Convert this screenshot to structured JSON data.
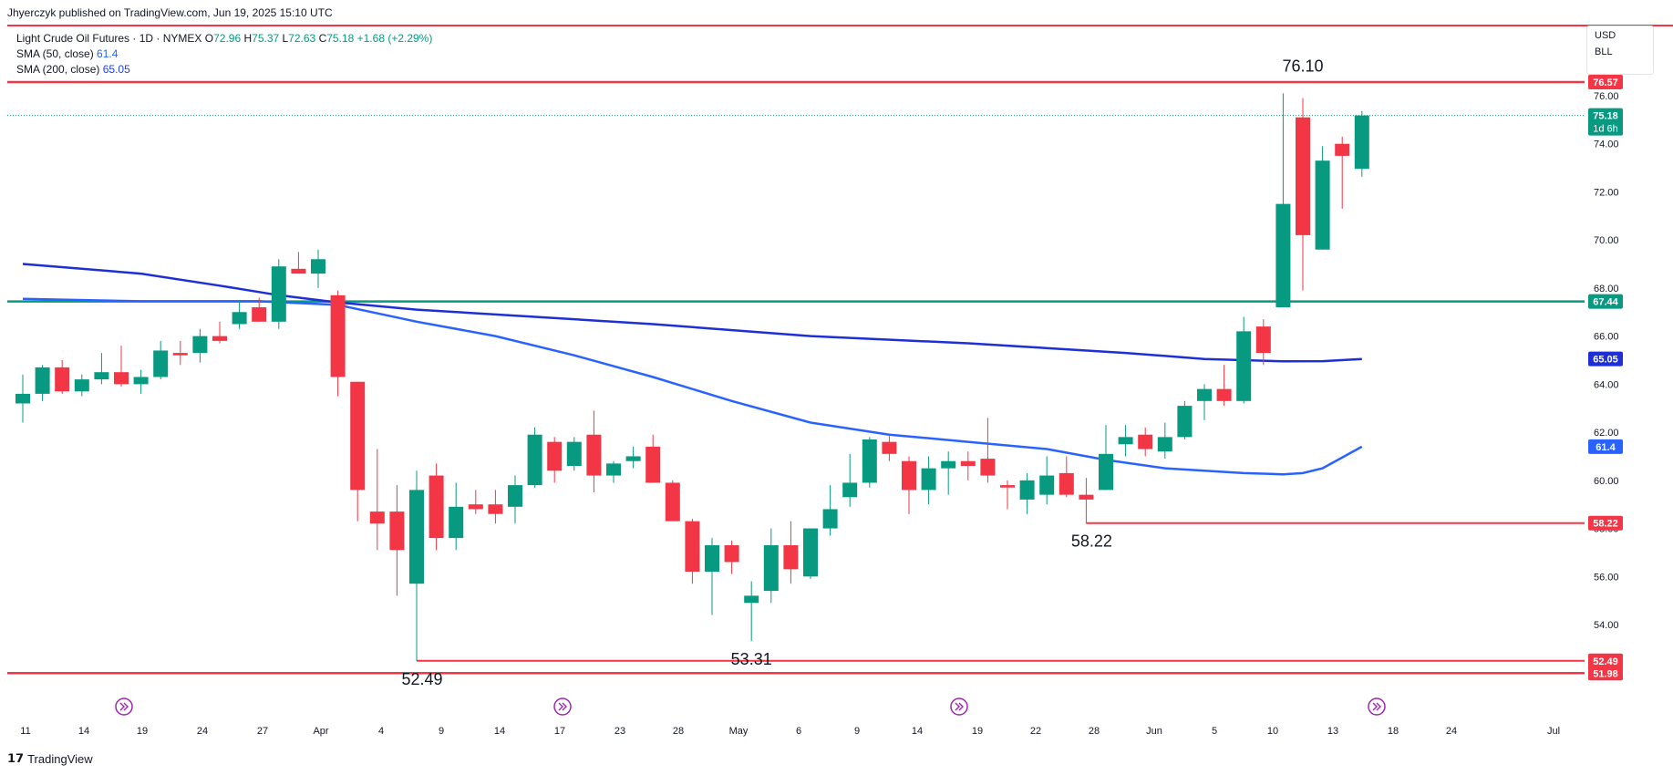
{
  "header": {
    "published_by": "Jhyerczyk published on TradingView.com, Jun 19, 2025 15:10 UTC"
  },
  "legend": {
    "symbol": "Light Crude Oil Futures · 1D · NYMEX",
    "o_label": "O",
    "o_value": "72.96",
    "h_label": "H",
    "h_value": "75.37",
    "l_label": "L",
    "l_value": "72.63",
    "c_label": "C",
    "c_value": "75.18",
    "change": "+1.68 (+2.29%)",
    "sma50_label": "SMA (50, close)",
    "sma50_value": "61.4",
    "sma200_label": "SMA (200, close)",
    "sma200_value": "65.05"
  },
  "currency": {
    "currency": "USD",
    "unit": "BLL"
  },
  "footer": {
    "brand": "TradingView"
  },
  "colors": {
    "up": "#089981",
    "down": "#f23645",
    "sma50": "#2962ff",
    "sma200": "#1e2fd6",
    "level_red": "#f23645",
    "level_green": "#089981"
  },
  "chart_data": {
    "type": "candlestick",
    "ylim": [
      51.2,
      77.6
    ],
    "y_ticks": [
      "54.00",
      "56.00",
      "58.00",
      "60.00",
      "62.00",
      "64.00",
      "66.00",
      "68.00",
      "70.00",
      "72.00",
      "74.00",
      "76.00"
    ],
    "x_tick_labels": [
      "11",
      "14",
      "19",
      "24",
      "27",
      "Apr",
      "4",
      "9",
      "14",
      "17",
      "23",
      "28",
      "May",
      "6",
      "9",
      "14",
      "19",
      "22",
      "28",
      "Jun",
      "5",
      "10",
      "13",
      "18",
      "24",
      "Jul"
    ],
    "candles": [
      {
        "o": 63.2,
        "h": 64.4,
        "l": 62.4,
        "c": 63.6
      },
      {
        "o": 63.6,
        "h": 64.8,
        "l": 63.3,
        "c": 64.7
      },
      {
        "o": 64.7,
        "h": 65.0,
        "l": 63.6,
        "c": 63.7
      },
      {
        "o": 63.7,
        "h": 64.4,
        "l": 63.5,
        "c": 64.2
      },
      {
        "o": 64.2,
        "h": 65.3,
        "l": 64.0,
        "c": 64.5
      },
      {
        "o": 64.5,
        "h": 65.6,
        "l": 63.9,
        "c": 64.0
      },
      {
        "o": 64.0,
        "h": 64.6,
        "l": 63.6,
        "c": 64.3
      },
      {
        "o": 64.3,
        "h": 65.8,
        "l": 64.2,
        "c": 65.4
      },
      {
        "o": 65.3,
        "h": 65.8,
        "l": 64.8,
        "c": 65.2
      },
      {
        "o": 65.3,
        "h": 66.3,
        "l": 64.9,
        "c": 66.0
      },
      {
        "o": 66.0,
        "h": 66.6,
        "l": 65.7,
        "c": 65.8
      },
      {
        "o": 66.5,
        "h": 67.5,
        "l": 66.3,
        "c": 67.0
      },
      {
        "o": 67.2,
        "h": 67.6,
        "l": 66.6,
        "c": 66.6
      },
      {
        "o": 66.6,
        "h": 69.2,
        "l": 66.3,
        "c": 68.9
      },
      {
        "o": 68.8,
        "h": 69.5,
        "l": 68.6,
        "c": 68.6
      },
      {
        "o": 68.6,
        "h": 69.6,
        "l": 68.0,
        "c": 69.2
      },
      {
        "o": 67.7,
        "h": 67.9,
        "l": 63.5,
        "c": 64.3
      },
      {
        "o": 64.1,
        "h": 64.1,
        "l": 58.3,
        "c": 59.6
      },
      {
        "o": 58.7,
        "h": 61.3,
        "l": 57.1,
        "c": 58.2
      },
      {
        "o": 58.7,
        "h": 59.8,
        "l": 55.2,
        "c": 57.1
      },
      {
        "o": 55.7,
        "h": 60.4,
        "l": 52.49,
        "c": 59.6
      },
      {
        "o": 60.2,
        "h": 60.7,
        "l": 57.1,
        "c": 57.6
      },
      {
        "o": 57.6,
        "h": 59.9,
        "l": 57.1,
        "c": 58.9
      },
      {
        "o": 59.0,
        "h": 59.6,
        "l": 58.6,
        "c": 58.8
      },
      {
        "o": 59.0,
        "h": 59.6,
        "l": 58.2,
        "c": 58.6
      },
      {
        "o": 58.9,
        "h": 60.2,
        "l": 58.2,
        "c": 59.8
      },
      {
        "o": 59.8,
        "h": 62.2,
        "l": 59.7,
        "c": 61.9
      },
      {
        "o": 61.6,
        "h": 61.8,
        "l": 59.9,
        "c": 60.4
      },
      {
        "o": 60.6,
        "h": 61.8,
        "l": 60.4,
        "c": 61.6
      },
      {
        "o": 61.9,
        "h": 62.9,
        "l": 59.5,
        "c": 60.2
      },
      {
        "o": 60.2,
        "h": 60.8,
        "l": 59.9,
        "c": 60.7
      },
      {
        "o": 60.8,
        "h": 61.4,
        "l": 60.5,
        "c": 61.0
      },
      {
        "o": 61.4,
        "h": 61.9,
        "l": 60.0,
        "c": 59.9
      },
      {
        "o": 59.9,
        "h": 60.0,
        "l": 58.3,
        "c": 58.3
      },
      {
        "o": 58.3,
        "h": 58.4,
        "l": 55.7,
        "c": 56.2
      },
      {
        "o": 56.2,
        "h": 57.6,
        "l": 54.4,
        "c": 57.3
      },
      {
        "o": 57.3,
        "h": 57.5,
        "l": 56.1,
        "c": 56.6
      },
      {
        "o": 54.9,
        "h": 55.8,
        "l": 53.31,
        "c": 55.2
      },
      {
        "o": 55.4,
        "h": 58.0,
        "l": 54.9,
        "c": 57.3
      },
      {
        "o": 57.3,
        "h": 58.3,
        "l": 55.7,
        "c": 56.3
      },
      {
        "o": 56.0,
        "h": 58.0,
        "l": 55.9,
        "c": 58.0
      },
      {
        "o": 58.0,
        "h": 59.8,
        "l": 57.7,
        "c": 58.8
      },
      {
        "o": 59.3,
        "h": 61.1,
        "l": 58.9,
        "c": 59.9
      },
      {
        "o": 59.9,
        "h": 61.8,
        "l": 59.7,
        "c": 61.7
      },
      {
        "o": 61.6,
        "h": 61.9,
        "l": 60.8,
        "c": 61.1
      },
      {
        "o": 60.8,
        "h": 61.0,
        "l": 58.6,
        "c": 59.6
      },
      {
        "o": 59.6,
        "h": 61.0,
        "l": 59.0,
        "c": 60.5
      },
      {
        "o": 60.5,
        "h": 61.2,
        "l": 59.4,
        "c": 60.8
      },
      {
        "o": 60.8,
        "h": 61.2,
        "l": 60.0,
        "c": 60.6
      },
      {
        "o": 60.9,
        "h": 62.6,
        "l": 59.9,
        "c": 60.2
      },
      {
        "o": 59.8,
        "h": 60.0,
        "l": 58.8,
        "c": 59.7
      },
      {
        "o": 59.2,
        "h": 60.3,
        "l": 58.6,
        "c": 60.0
      },
      {
        "o": 59.4,
        "h": 61.0,
        "l": 59.0,
        "c": 60.2
      },
      {
        "o": 60.3,
        "h": 61.0,
        "l": 59.3,
        "c": 59.4
      },
      {
        "o": 59.4,
        "h": 60.1,
        "l": 58.22,
        "c": 59.2
      },
      {
        "o": 59.6,
        "h": 62.3,
        "l": 59.6,
        "c": 61.1
      },
      {
        "o": 61.5,
        "h": 62.3,
        "l": 61.0,
        "c": 61.8
      },
      {
        "o": 61.9,
        "h": 62.2,
        "l": 61.0,
        "c": 61.3
      },
      {
        "o": 61.2,
        "h": 62.4,
        "l": 60.9,
        "c": 61.8
      },
      {
        "o": 61.8,
        "h": 63.3,
        "l": 61.7,
        "c": 63.1
      },
      {
        "o": 63.3,
        "h": 64.0,
        "l": 62.5,
        "c": 63.8
      },
      {
        "o": 63.8,
        "h": 64.8,
        "l": 63.1,
        "c": 63.3
      },
      {
        "o": 63.3,
        "h": 66.8,
        "l": 63.2,
        "c": 66.2
      },
      {
        "o": 66.4,
        "h": 66.7,
        "l": 64.8,
        "c": 65.3
      },
      {
        "o": 67.2,
        "h": 76.1,
        "l": 67.2,
        "c": 71.5
      },
      {
        "o": 75.1,
        "h": 75.9,
        "l": 67.9,
        "c": 70.2
      },
      {
        "o": 69.6,
        "h": 73.9,
        "l": 69.6,
        "c": 73.3
      },
      {
        "o": 74.0,
        "h": 74.3,
        "l": 71.3,
        "c": 73.5
      },
      {
        "o": 72.96,
        "h": 75.37,
        "l": 72.63,
        "c": 75.18
      }
    ],
    "series": [
      {
        "name": "SMA (50, close)",
        "values": [
          [
            0,
            67.55
          ],
          [
            6,
            67.45
          ],
          [
            12,
            67.45
          ],
          [
            16,
            67.3
          ],
          [
            20,
            66.6
          ],
          [
            24,
            66.0
          ],
          [
            28,
            65.2
          ],
          [
            32,
            64.3
          ],
          [
            36,
            63.3
          ],
          [
            40,
            62.4
          ],
          [
            44,
            61.9
          ],
          [
            48,
            61.6
          ],
          [
            52,
            61.3
          ],
          [
            55,
            60.85
          ],
          [
            58,
            60.5
          ],
          [
            60,
            60.4
          ],
          [
            62,
            60.3
          ],
          [
            64,
            60.25
          ],
          [
            65,
            60.3
          ],
          [
            66,
            60.5
          ],
          [
            68,
            61.4
          ]
        ]
      },
      {
        "name": "SMA (200, close)",
        "values": [
          [
            0,
            69.0
          ],
          [
            6,
            68.6
          ],
          [
            10,
            68.1
          ],
          [
            13,
            67.7
          ],
          [
            16,
            67.4
          ],
          [
            20,
            67.1
          ],
          [
            26,
            66.8
          ],
          [
            32,
            66.5
          ],
          [
            40,
            66.0
          ],
          [
            48,
            65.7
          ],
          [
            56,
            65.3
          ],
          [
            60,
            65.05
          ],
          [
            64,
            64.95
          ],
          [
            66,
            64.96
          ],
          [
            68,
            65.05
          ]
        ]
      }
    ],
    "levels": [
      {
        "price": 76.57,
        "label": "76.57",
        "color": "red",
        "from": "left"
      },
      {
        "price": 67.44,
        "label": "67.44",
        "color": "green",
        "from": "left"
      },
      {
        "price": 58.22,
        "label": "58.22",
        "color": "red",
        "from_index": 54
      },
      {
        "price": 52.49,
        "label": "52.49",
        "color": "red",
        "from_index": 20
      },
      {
        "price": 51.98,
        "label": "51.98",
        "color": "red",
        "from": "left"
      }
    ],
    "last_price": {
      "label": "75.18",
      "countdown": "1d 6h"
    },
    "sma_tags": [
      {
        "label": "65.05",
        "series": "SMA (200, close)"
      },
      {
        "label": "61.4",
        "series": "SMA (50, close)"
      }
    ],
    "annotations": [
      {
        "text": "76.10",
        "index": 65,
        "price": 76.1,
        "pos": "above"
      },
      {
        "text": "58.22",
        "index": 54,
        "price": 58.22,
        "pos": "below"
      },
      {
        "text": "53.31",
        "index": 37,
        "price": 53.31,
        "pos": "below"
      },
      {
        "text": "52.49",
        "index": 20,
        "price": 52.49,
        "pos": "below"
      }
    ],
    "event_markers": [
      5,
      28,
      49,
      70
    ]
  }
}
